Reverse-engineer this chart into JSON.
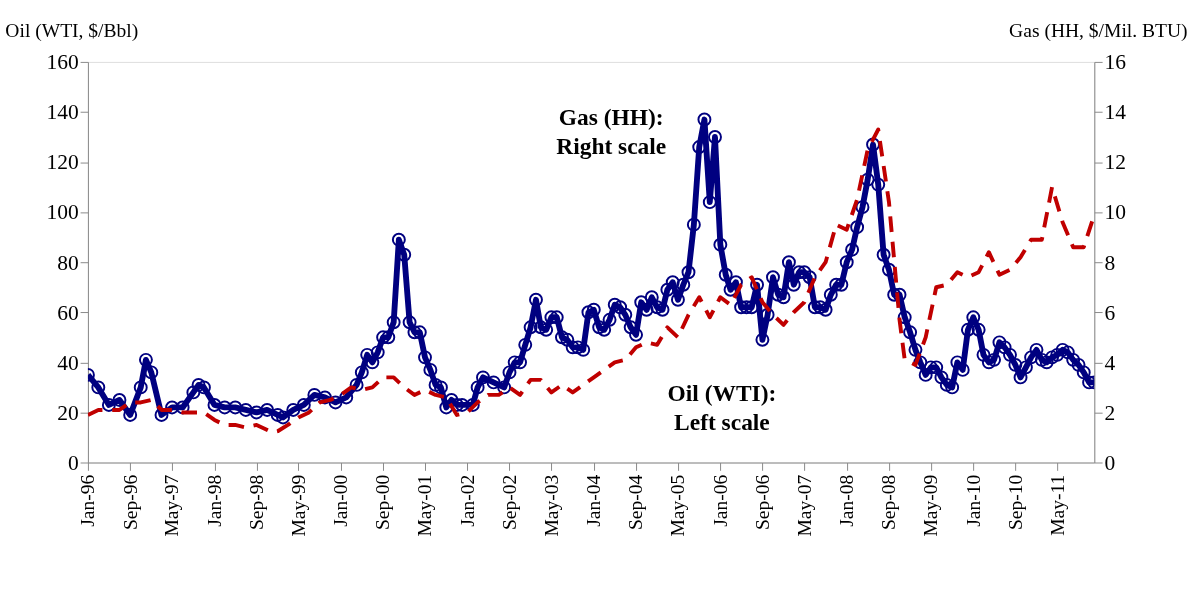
{
  "chart_data": {
    "type": "line",
    "ylabel": "Oil (WTI, $/Bbl)",
    "y2label": "Gas (HH, $/Mil. BTU)",
    "annotations": [
      "Gas (HH): Right scale",
      "Oil (WTI): Left scale"
    ],
    "xlim": [
      "1996-01",
      "2011-12"
    ],
    "xticks": [
      {
        "value": "1996-01",
        "label": "Jan-96"
      },
      {
        "value": "1996-09",
        "label": "Sep-96"
      },
      {
        "value": "1997-05",
        "label": "May-97"
      },
      {
        "value": "1998-01",
        "label": "Jan-98"
      },
      {
        "value": "1998-09",
        "label": "Sep-98"
      },
      {
        "value": "1999-05",
        "label": "May-99"
      },
      {
        "value": "2000-01",
        "label": "Jan-00"
      },
      {
        "value": "2000-09",
        "label": "Sep-00"
      },
      {
        "value": "2001-05",
        "label": "May-01"
      },
      {
        "value": "2002-01",
        "label": "Jan-02"
      },
      {
        "value": "2002-09",
        "label": "Sep-02"
      },
      {
        "value": "2003-05",
        "label": "May-03"
      },
      {
        "value": "2004-01",
        "label": "Jan-04"
      },
      {
        "value": "2004-09",
        "label": "Sep-04"
      },
      {
        "value": "2005-05",
        "label": "May-05"
      },
      {
        "value": "2006-01",
        "label": "Jan-06"
      },
      {
        "value": "2006-09",
        "label": "Sep-06"
      },
      {
        "value": "2007-05",
        "label": "May-07"
      },
      {
        "value": "2008-01",
        "label": "Jan-08"
      },
      {
        "value": "2008-09",
        "label": "Sep-08"
      },
      {
        "value": "2009-05",
        "label": "May-09"
      },
      {
        "value": "2010-01",
        "label": "Jan-10"
      },
      {
        "value": "2010-09",
        "label": "Sep-10"
      },
      {
        "value": "2011-05",
        "label": "May-11"
      }
    ],
    "ylim": [
      0,
      160
    ],
    "yticks": [
      0,
      20,
      40,
      60,
      80,
      100,
      120,
      140,
      160
    ],
    "y2lim": [
      0,
      16
    ],
    "y2ticks": [
      0,
      2,
      4,
      6,
      8,
      10,
      12,
      14,
      16
    ],
    "grid": false,
    "series": [
      {
        "color": "#000080",
        "axis": "y2",
        "marker": "circle",
        "line_style": "solid",
        "x": [
          "1996-01",
          "1996-03",
          "1996-05",
          "1996-07",
          "1996-09",
          "1996-11",
          "1996-12",
          "1997-01",
          "1997-03",
          "1997-05",
          "1997-07",
          "1997-09",
          "1997-10",
          "1997-11",
          "1998-01",
          "1998-03",
          "1998-05",
          "1998-07",
          "1998-09",
          "1998-11",
          "1999-01",
          "1999-02",
          "1999-04",
          "1999-06",
          "1999-08",
          "1999-10",
          "1999-12",
          "2000-02",
          "2000-04",
          "2000-05",
          "2000-06",
          "2000-07",
          "2000-08",
          "2000-09",
          "2000-10",
          "2000-11",
          "2000-12",
          "2001-01",
          "2001-02",
          "2001-03",
          "2001-04",
          "2001-05",
          "2001-06",
          "2001-07",
          "2001-08",
          "2001-09",
          "2001-10",
          "2001-11",
          "2001-12",
          "2002-02",
          "2002-03",
          "2002-04",
          "2002-06",
          "2002-08",
          "2002-09",
          "2002-10",
          "2002-11",
          "2002-12",
          "2003-01",
          "2003-02",
          "2003-03",
          "2003-04",
          "2003-05",
          "2003-06",
          "2003-07",
          "2003-08",
          "2003-09",
          "2003-10",
          "2003-11",
          "2003-12",
          "2004-01",
          "2004-02",
          "2004-03",
          "2004-04",
          "2004-05",
          "2004-06",
          "2004-07",
          "2004-08",
          "2004-09",
          "2004-10",
          "2004-11",
          "2004-12",
          "2005-01",
          "2005-02",
          "2005-03",
          "2005-04",
          "2005-05",
          "2005-06",
          "2005-07",
          "2005-08",
          "2005-09",
          "2005-10",
          "2005-11",
          "2005-12",
          "2006-01",
          "2006-02",
          "2006-03",
          "2006-04",
          "2006-05",
          "2006-06",
          "2006-07",
          "2006-08",
          "2006-09",
          "2006-10",
          "2006-11",
          "2006-12",
          "2007-01",
          "2007-02",
          "2007-03",
          "2007-04",
          "2007-05",
          "2007-06",
          "2007-07",
          "2007-08",
          "2007-09",
          "2007-10",
          "2007-11",
          "2007-12",
          "2008-01",
          "2008-02",
          "2008-03",
          "2008-04",
          "2008-05",
          "2008-06",
          "2008-07",
          "2008-08",
          "2008-09",
          "2008-10",
          "2008-11",
          "2008-12",
          "2009-01",
          "2009-02",
          "2009-03",
          "2009-04",
          "2009-05",
          "2009-06",
          "2009-07",
          "2009-08",
          "2009-09",
          "2009-10",
          "2009-11",
          "2009-12",
          "2010-01",
          "2010-02",
          "2010-03",
          "2010-04",
          "2010-05",
          "2010-06",
          "2010-07",
          "2010-08",
          "2010-09",
          "2010-10",
          "2010-11",
          "2010-12",
          "2011-01",
          "2011-02",
          "2011-03",
          "2011-04",
          "2011-05",
          "2011-06",
          "2011-07",
          "2011-08",
          "2011-09",
          "2011-10",
          "2011-11",
          "2011-12"
        ],
        "values": [
          3.5,
          3.0,
          2.3,
          2.5,
          1.9,
          3.0,
          4.1,
          3.6,
          1.9,
          2.2,
          2.2,
          2.8,
          3.1,
          3.0,
          2.3,
          2.2,
          2.2,
          2.1,
          2.0,
          2.1,
          1.9,
          1.8,
          2.1,
          2.3,
          2.7,
          2.6,
          2.4,
          2.6,
          3.1,
          3.6,
          4.3,
          4.0,
          4.4,
          5.0,
          5.0,
          5.6,
          8.9,
          8.3,
          5.6,
          5.2,
          5.2,
          4.2,
          3.7,
          3.1,
          3.0,
          2.2,
          2.5,
          2.3,
          2.3,
          2.3,
          3.0,
          3.4,
          3.2,
          3.0,
          3.6,
          4.0,
          4.0,
          4.7,
          5.4,
          6.5,
          5.4,
          5.3,
          5.8,
          5.8,
          5.0,
          4.9,
          4.6,
          4.6,
          4.5,
          6.0,
          6.1,
          5.4,
          5.3,
          5.7,
          6.3,
          6.2,
          5.9,
          5.4,
          5.1,
          6.4,
          6.1,
          6.6,
          6.2,
          6.1,
          6.9,
          7.2,
          6.5,
          7.1,
          7.6,
          9.5,
          12.6,
          13.7,
          10.4,
          13.0,
          8.7,
          7.5,
          6.9,
          7.2,
          6.2,
          6.2,
          6.2,
          7.1,
          4.9,
          5.9,
          7.4,
          6.7,
          6.6,
          8.0,
          7.1,
          7.6,
          7.6,
          7.4,
          6.2,
          6.2,
          6.1,
          6.7,
          7.1,
          7.1,
          8.0,
          8.5,
          9.4,
          10.2,
          11.3,
          12.7,
          11.1,
          8.3,
          7.7,
          6.7,
          6.7,
          5.8,
          5.2,
          4.5,
          4.0,
          3.5,
          3.8,
          3.8,
          3.4,
          3.1,
          3.0,
          4.0,
          3.7,
          5.3,
          5.8,
          5.3,
          4.3,
          4.0,
          4.1,
          4.8,
          4.6,
          4.3,
          3.9,
          3.4,
          3.8,
          4.2,
          4.5,
          4.1,
          4.0,
          4.2,
          4.3,
          4.5,
          4.4,
          4.1,
          3.9,
          3.6,
          3.2,
          3.2
        ]
      },
      {
        "color": "#c00000",
        "axis": "y",
        "marker": "none",
        "line_style": "dashed",
        "x": [
          "1996-01",
          "1996-03",
          "1996-05",
          "1996-07",
          "1996-09",
          "1996-11",
          "1997-01",
          "1997-03",
          "1997-05",
          "1997-07",
          "1997-09",
          "1997-11",
          "1998-01",
          "1998-03",
          "1998-05",
          "1998-07",
          "1998-09",
          "1998-12",
          "1999-01",
          "1999-03",
          "1999-05",
          "1999-07",
          "1999-09",
          "1999-11",
          "2000-01",
          "2000-03",
          "2000-05",
          "2000-07",
          "2000-09",
          "2000-11",
          "2001-01",
          "2001-03",
          "2001-05",
          "2001-07",
          "2001-09",
          "2001-11",
          "2002-01",
          "2002-03",
          "2002-05",
          "2002-07",
          "2002-09",
          "2002-11",
          "2003-01",
          "2003-03",
          "2003-05",
          "2003-07",
          "2003-09",
          "2003-11",
          "2004-01",
          "2004-03",
          "2004-05",
          "2004-07",
          "2004-09",
          "2004-11",
          "2005-01",
          "2005-03",
          "2005-05",
          "2005-07",
          "2005-09",
          "2005-11",
          "2006-01",
          "2006-03",
          "2006-05",
          "2006-07",
          "2006-09",
          "2006-11",
          "2007-01",
          "2007-03",
          "2007-05",
          "2007-07",
          "2007-09",
          "2007-11",
          "2008-01",
          "2008-03",
          "2008-05",
          "2008-07",
          "2008-09",
          "2008-11",
          "2008-12",
          "2009-02",
          "2009-04",
          "2009-06",
          "2009-08",
          "2009-10",
          "2009-12",
          "2010-02",
          "2010-04",
          "2010-06",
          "2010-08",
          "2010-10",
          "2010-12",
          "2011-02",
          "2011-04",
          "2011-06",
          "2011-08",
          "2011-10",
          "2011-12"
        ],
        "values": [
          19,
          21,
          21,
          21,
          24,
          24,
          25,
          21,
          21,
          20,
          20,
          20,
          17,
          15,
          15,
          14,
          15,
          12,
          12.5,
          15,
          18,
          20,
          24,
          25,
          27,
          30,
          29,
          30,
          34,
          34,
          30,
          27,
          29,
          27,
          26,
          19,
          20,
          24,
          27,
          27,
          30,
          27,
          33,
          33,
          28,
          31,
          28,
          31,
          34,
          37,
          40,
          41,
          46,
          48,
          47,
          54,
          50,
          59,
          66,
          58,
          66,
          63,
          71,
          74,
          64,
          59,
          55,
          60,
          64,
          74,
          80,
          95,
          93,
          105,
          125,
          133,
          104,
          57,
          41,
          39,
          50,
          70,
          71,
          76,
          74,
          76,
          84,
          75,
          77,
          82,
          89,
          89,
          110,
          96,
          86,
          86,
          99
        ]
      }
    ]
  }
}
